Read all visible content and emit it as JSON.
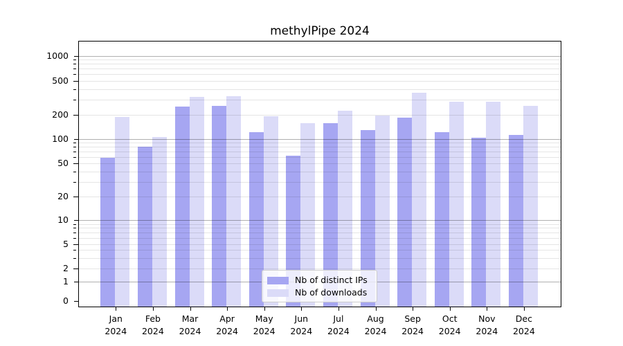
{
  "title": "methylPipe 2024",
  "chart_data": {
    "type": "bar",
    "title": "methylPipe 2024",
    "categories": [
      "Jan",
      "Feb",
      "Mar",
      "Apr",
      "May",
      "Jun",
      "Jul",
      "Aug",
      "Sep",
      "Oct",
      "Nov",
      "Dec"
    ],
    "year_label": "2024",
    "series": [
      {
        "name": "Nb of distinct IPs",
        "color": "#a6a6f2",
        "values": [
          58,
          80,
          250,
          256,
          121,
          62,
          158,
          130,
          183,
          122,
          104,
          111
        ]
      },
      {
        "name": "Nb of downloads",
        "color": "#dbdbf8",
        "values": [
          187,
          105,
          325,
          332,
          192,
          158,
          225,
          198,
          362,
          285,
          285,
          255
        ]
      }
    ],
    "y_axis": {
      "scale": "symlog",
      "tick_values": [
        0,
        1,
        2,
        5,
        10,
        20,
        50,
        100,
        200,
        500,
        1000
      ],
      "major_grid_values": [
        1,
        10,
        100,
        1000
      ],
      "labeled_minor_values": [
        2,
        5,
        20,
        50,
        200,
        500
      ],
      "minor_grid_values": [
        3,
        4,
        6,
        7,
        8,
        9,
        30,
        40,
        60,
        70,
        80,
        90,
        300,
        400,
        600,
        700,
        800,
        900
      ],
      "ylim": [
        0,
        1500
      ]
    },
    "grid": "both",
    "legend_position": "lower-center",
    "background": "#ffffff"
  }
}
